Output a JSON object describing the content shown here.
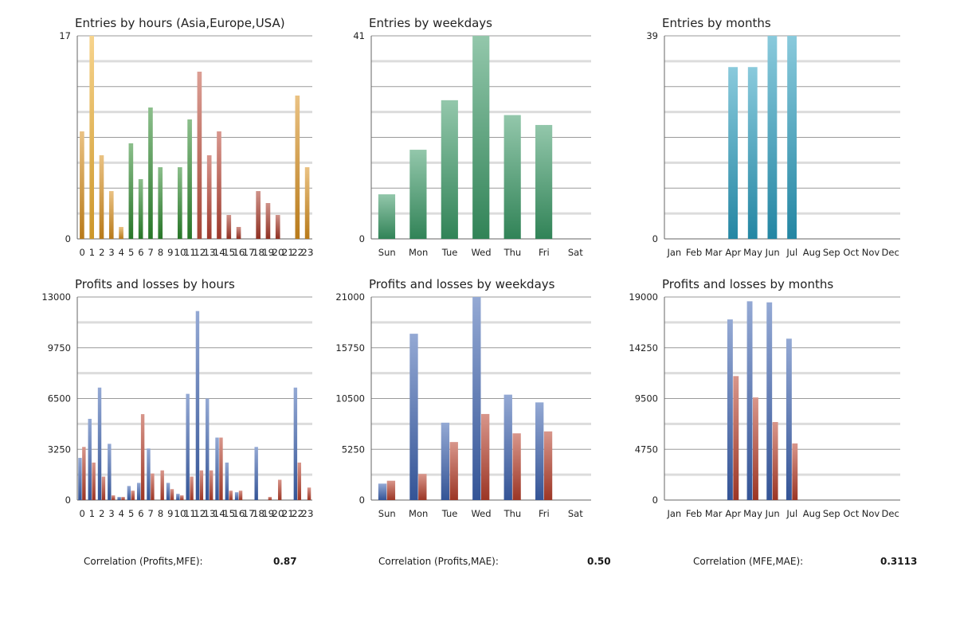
{
  "chart_data": [
    {
      "id": "c1",
      "type": "bar",
      "title": "Entries by hours (Asia,Europe,USA)",
      "categories": [
        "0",
        "1",
        "2",
        "3",
        "4",
        "5",
        "6",
        "7",
        "8",
        "9",
        "10",
        "11",
        "12",
        "13",
        "14",
        "15",
        "16",
        "17",
        "18",
        "19",
        "20",
        "21",
        "22",
        "23"
      ],
      "tick_labels": [
        "0",
        "1",
        "2",
        "3",
        "4",
        "5",
        "6",
        "7",
        "8",
        "9",
        "10",
        "11",
        "12",
        "13",
        "14",
        "15",
        "16",
        "17",
        "18",
        "19",
        "20",
        "21",
        "22",
        "23"
      ],
      "values": [
        9,
        17,
        7,
        4,
        1,
        8,
        5,
        11,
        6,
        0,
        6,
        10,
        14,
        7,
        9,
        2,
        1,
        0,
        4,
        3,
        2,
        0,
        12,
        6
      ],
      "bar_colors": [
        "#d9901e",
        "#f0b030",
        "#d9901e",
        "#d9901e",
        "#d9901e",
        "#2e8a2e",
        "#2e8a2e",
        "#2e8a2e",
        "#2e8a2e",
        "#2e8a2e",
        "#2e8a2e",
        "#2e8a2e",
        "#c0503e",
        "#b84232",
        "#b84232",
        "#a83828",
        "#a83828",
        "#a83828",
        "#a83828",
        "#a83828",
        "#a83828",
        "#a83828",
        "#d9901e",
        "#d9901e"
      ],
      "ylim": [
        0,
        17
      ],
      "y_ticks": [
        "0",
        "17"
      ],
      "grid": true
    },
    {
      "id": "c2",
      "type": "bar",
      "title": "Entries by weekdays",
      "categories": [
        "Sun",
        "Mon",
        "Tue",
        "Wed",
        "Thu",
        "Fri",
        "Sat"
      ],
      "tick_labels": [
        "Sun",
        "Mon",
        "Tue",
        "Wed",
        "Thu",
        "Fri",
        "Sat"
      ],
      "values": [
        9,
        18,
        28,
        41,
        25,
        23,
        0
      ],
      "bar_colors": [
        "#3a9a66",
        "#3a9a66",
        "#3a9a66",
        "#3a9a66",
        "#3a9a66",
        "#3a9a66",
        "#3a9a66"
      ],
      "ylim": [
        0,
        41
      ],
      "y_ticks": [
        "0",
        "41"
      ],
      "grid": true
    },
    {
      "id": "c3",
      "type": "bar",
      "title": "Entries by months",
      "categories": [
        "Jan",
        "Feb",
        "Mar",
        "Apr",
        "May",
        "Jun",
        "Jul",
        "Aug",
        "Sep",
        "Oct",
        "Nov",
        "Dec"
      ],
      "tick_labels": [
        "Jan",
        "Feb",
        "Mar",
        "Apr",
        "May",
        "Jun",
        "Jul",
        "Aug",
        "Sep",
        "Oct",
        "Nov",
        "Dec"
      ],
      "values": [
        0,
        0,
        0,
        33,
        33,
        39,
        39,
        0,
        0,
        0,
        0,
        0
      ],
      "bar_colors": [
        "#2a9ec0",
        "#2a9ec0",
        "#2a9ec0",
        "#2a9ec0",
        "#2a9ec0",
        "#2a9ec0",
        "#2a9ec0",
        "#2a9ec0",
        "#2a9ec0",
        "#2a9ec0",
        "#2a9ec0",
        "#2a9ec0"
      ],
      "ylim": [
        0,
        39
      ],
      "y_ticks": [
        "0",
        "39"
      ],
      "grid": true
    },
    {
      "id": "c4",
      "type": "bar",
      "title": "Profits and losses by hours",
      "categories": [
        "0",
        "1",
        "2",
        "3",
        "4",
        "5",
        "6",
        "7",
        "8",
        "9",
        "10",
        "11",
        "12",
        "13",
        "14",
        "15",
        "16",
        "17",
        "18",
        "19",
        "20",
        "21",
        "22",
        "23"
      ],
      "tick_labels": [
        "0",
        "1",
        "2",
        "3",
        "4",
        "5",
        "6",
        "7",
        "8",
        "9",
        "10",
        "11",
        "12",
        "13",
        "14",
        "15",
        "16",
        "17",
        "18",
        "19",
        "20",
        "21",
        "22",
        "23"
      ],
      "series": [
        {
          "color": "#3d63b0",
          "values": [
            2700,
            5200,
            7200,
            3600,
            200,
            900,
            1100,
            3300,
            0,
            1100,
            400,
            6800,
            12100,
            6500,
            4000,
            2400,
            500,
            0,
            3400,
            0,
            0,
            0,
            7200,
            0
          ]
        },
        {
          "color": "#b8402c",
          "values": [
            3400,
            2400,
            1500,
            300,
            200,
            600,
            5500,
            1700,
            1900,
            700,
            300,
            1500,
            1900,
            1900,
            4000,
            600,
            600,
            0,
            0,
            200,
            1300,
            0,
            2400,
            800
          ]
        }
      ],
      "ylim": [
        0,
        13000
      ],
      "y_ticks": [
        "0",
        "3250",
        "6500",
        "9750",
        "13000"
      ],
      "grid": true
    },
    {
      "id": "c5",
      "type": "bar",
      "title": "Profits and losses by weekdays",
      "categories": [
        "Sun",
        "Mon",
        "Tue",
        "Wed",
        "Thu",
        "Fri",
        "Sat"
      ],
      "tick_labels": [
        "Sun",
        "Mon",
        "Tue",
        "Wed",
        "Thu",
        "Fri",
        "Sat"
      ],
      "series": [
        {
          "color": "#3d63b0",
          "values": [
            1700,
            17200,
            8000,
            21000,
            10900,
            10100,
            0
          ]
        },
        {
          "color": "#b8402c",
          "values": [
            2000,
            2700,
            6000,
            8900,
            6900,
            7100,
            0
          ]
        }
      ],
      "ylim": [
        0,
        21000
      ],
      "y_ticks": [
        "0",
        "5250",
        "10500",
        "15750",
        "21000"
      ],
      "grid": true
    },
    {
      "id": "c6",
      "type": "bar",
      "title": "Profits and losses by months",
      "categories": [
        "Jan",
        "Feb",
        "Mar",
        "Apr",
        "May",
        "Jun",
        "Jul",
        "Aug",
        "Sep",
        "Oct",
        "Nov",
        "Dec"
      ],
      "tick_labels": [
        "Jan",
        "Feb",
        "Mar",
        "Apr",
        "May",
        "Jun",
        "Jul",
        "Aug",
        "Sep",
        "Oct",
        "Nov",
        "Dec"
      ],
      "series": [
        {
          "color": "#3d63b0",
          "values": [
            0,
            0,
            0,
            16900,
            18600,
            18500,
            15100,
            0,
            0,
            0,
            0,
            0
          ]
        },
        {
          "color": "#b8402c",
          "values": [
            0,
            0,
            0,
            11600,
            9600,
            7300,
            5300,
            0,
            0,
            0,
            0,
            0
          ]
        }
      ],
      "ylim": [
        0,
        19000
      ],
      "y_ticks": [
        "0",
        "4750",
        "9500",
        "14250",
        "19000"
      ],
      "grid": true
    }
  ],
  "correlations": [
    {
      "label": "Correlation (Profits,MFE):",
      "value": "0.87"
    },
    {
      "label": "Correlation (Profits,MAE):",
      "value": "0.50"
    },
    {
      "label": "Correlation (MFE,MAE):",
      "value": "0.3113"
    }
  ]
}
